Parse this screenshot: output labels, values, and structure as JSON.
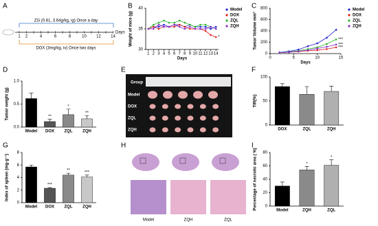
{
  "diagram": {
    "label": "A",
    "regimen_top": "ZG (0.81, 3.64g/kg, ig) Once a day",
    "axis_label": "Days",
    "start": "1",
    "timeline": [
      "2",
      "4",
      "6",
      "8",
      "10",
      "12",
      "14"
    ],
    "regimen_bottom": "DOX (3mg/kg, iv) Once two days"
  },
  "photo": {
    "label": "E",
    "header": "Group",
    "groups": [
      "Model",
      "DOX",
      "ZQL",
      "ZQH"
    ]
  },
  "histology": {
    "label": "H",
    "groups": [
      "Model",
      "ZQH",
      "ZQL"
    ]
  },
  "chart_data": [
    {
      "type": "line",
      "label": "B",
      "xlabel": "Days",
      "ylabel": "Weight of mice (g)",
      "x": [
        1,
        2,
        3,
        4,
        5,
        6,
        7,
        8,
        9,
        10,
        11,
        12,
        13,
        14
      ],
      "xlim": [
        0.5,
        14.5
      ],
      "xticks": [
        1,
        2,
        3,
        4,
        5,
        6,
        7,
        8,
        9,
        10,
        11,
        12,
        13,
        14
      ],
      "ylim": [
        30,
        40
      ],
      "yticks": [
        30,
        35,
        40
      ],
      "legend": "right",
      "series": [
        {
          "name": "Model",
          "color": "#1f1fd0",
          "values": [
            35,
            35.5,
            35.5,
            36,
            35.5,
            36,
            36,
            35.5,
            36,
            35.5,
            35.5,
            35.5,
            35,
            35.5
          ]
        },
        {
          "name": "DOX",
          "color": "#e02020",
          "values": [
            35,
            35.5,
            35,
            35.5,
            35.5,
            35.5,
            36,
            35.5,
            35,
            35,
            35,
            34.5,
            33.5,
            33
          ],
          "annotation": "*"
        },
        {
          "name": "ZQL",
          "color": "#2ab52a",
          "values": [
            35,
            36,
            36.5,
            37,
            36.5,
            36.5,
            37,
            36.5,
            36,
            35.5,
            36,
            36,
            35.5,
            35
          ]
        },
        {
          "name": "ZQH",
          "color": "#8b2fc9",
          "values": [
            35,
            35,
            36,
            35.5,
            35.5,
            36,
            35.5,
            35,
            35.5,
            35,
            35,
            35,
            35.5,
            35
          ]
        }
      ]
    },
    {
      "type": "line",
      "label": "C",
      "xlabel": "Days",
      "ylabel": "Tumor Volume  mm³",
      "x": [
        2,
        4,
        6,
        8,
        10,
        12,
        14
      ],
      "xlim": [
        0,
        15
      ],
      "xticks": [
        0,
        5,
        10,
        15
      ],
      "ylim": [
        0,
        800
      ],
      "yticks": [
        0,
        200,
        400,
        600,
        800
      ],
      "legend": "right",
      "series": [
        {
          "name": "Model",
          "color": "#1f1fd0",
          "values": [
            20,
            40,
            70,
            130,
            180,
            280,
            420
          ]
        },
        {
          "name": "DOX",
          "color": "#e02020",
          "values": [
            15,
            25,
            35,
            50,
            60,
            80,
            110
          ],
          "annotation": "***"
        },
        {
          "name": "ZQL",
          "color": "#2ab52a",
          "values": [
            15,
            30,
            50,
            80,
            110,
            170,
            250
          ],
          "annotation": "***"
        },
        {
          "name": "ZQH",
          "color": "#8b2fc9",
          "values": [
            15,
            25,
            40,
            60,
            90,
            120,
            160
          ],
          "annotation": "***"
        }
      ]
    },
    {
      "type": "bar",
      "label": "D",
      "ylabel": "Tumor weight (g)",
      "categories": [
        "Model",
        "DOX",
        "ZQL",
        "ZQH"
      ],
      "values": [
        0.62,
        0.12,
        0.27,
        0.18
      ],
      "errors": [
        0.12,
        0.05,
        0.12,
        0.07
      ],
      "annotations": [
        null,
        "**",
        "*",
        "**"
      ],
      "colors": [
        "#000000",
        "#555555",
        "#8a8a8a",
        "#c8c8c8"
      ],
      "ylim": [
        0,
        1
      ],
      "yticks": [
        {
          "value": 0,
          "label": "0.0"
        },
        {
          "value": 0.5,
          "label": "0.5"
        },
        {
          "value": 1,
          "label": "1.0"
        }
      ]
    },
    {
      "type": "bar",
      "label": "F",
      "ylabel": "TIR(%)",
      "categories": [
        "DOX",
        "ZQL",
        "ZQH"
      ],
      "values": [
        80,
        64,
        70
      ],
      "errors": [
        6,
        16,
        11
      ],
      "annotations": [
        null,
        null,
        null
      ],
      "colors": [
        "#000000",
        "#8a8a8a",
        "#b0b0b0"
      ],
      "ylim": [
        0,
        100
      ],
      "yticks": [
        0,
        50,
        100
      ]
    },
    {
      "type": "bar",
      "label": "G",
      "ylabel": "Index of spleen (mg·g⁻¹)",
      "categories": [
        "Model",
        "DOX",
        "ZQL",
        "ZQH"
      ],
      "values": [
        5.7,
        2.3,
        4.4,
        4.1
      ],
      "errors": [
        0.3,
        0.1,
        0.3,
        0.3
      ],
      "annotations": [
        null,
        "***",
        "**",
        "***"
      ],
      "colors": [
        "#000000",
        "#555555",
        "#8a8a8a",
        "#c8c8c8"
      ],
      "ylim": [
        0,
        8
      ],
      "yticks": [
        0,
        2,
        4,
        6,
        8
      ]
    },
    {
      "type": "bar",
      "label": "I",
      "ylabel": "Percentage of necrotic area ( %)",
      "categories": [
        "Model",
        "ZQH",
        "ZQL"
      ],
      "values": [
        30,
        54,
        61
      ],
      "errors": [
        6,
        5,
        8
      ],
      "annotations": [
        null,
        "*",
        "*"
      ],
      "colors": [
        "#000000",
        "#8a8a8a",
        "#b0b0b0"
      ],
      "ylim": [
        0,
        80
      ],
      "yticks": [
        0,
        20,
        40,
        60,
        80
      ]
    }
  ]
}
